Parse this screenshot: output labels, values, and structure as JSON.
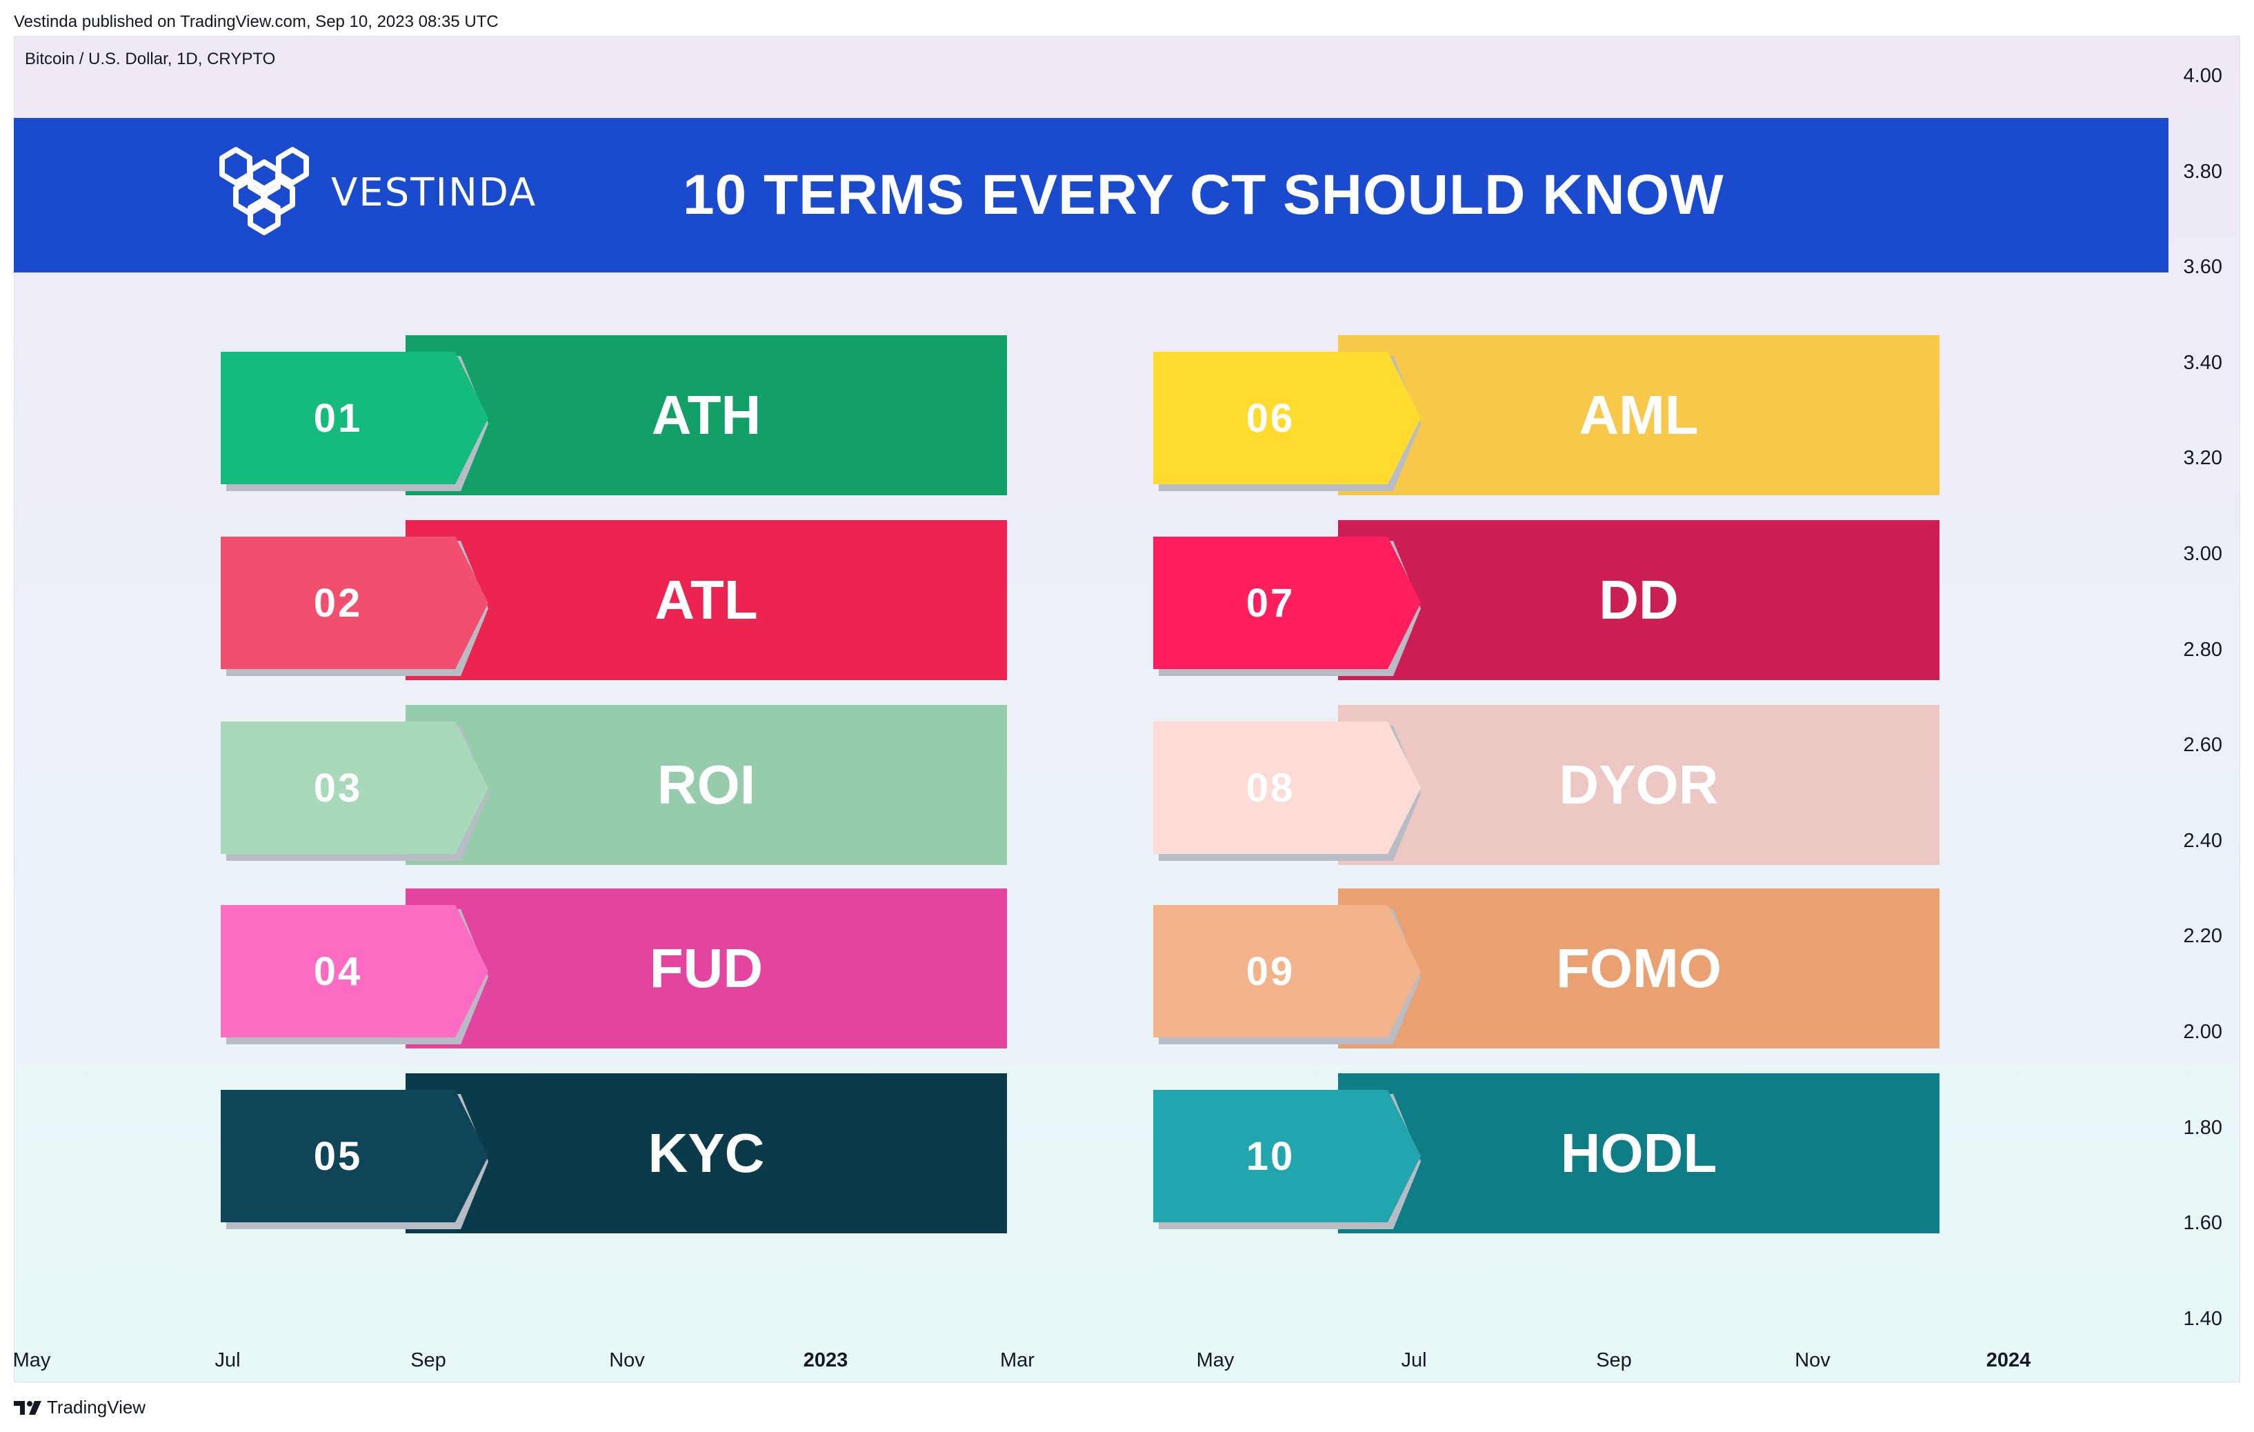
{
  "header": {
    "publish_line": "Vestinda published on TradingView.com, Sep 10, 2023 08:35 UTC"
  },
  "chart": {
    "symbol_line": "Bitcoin / U.S. Dollar, 1D, CRYPTO",
    "price_ticks": [
      "4.00",
      "3.80",
      "3.60",
      "3.40",
      "3.20",
      "3.00",
      "2.80",
      "2.60",
      "2.40",
      "2.20",
      "2.00",
      "1.80",
      "1.60",
      "1.40"
    ],
    "time_ticks": [
      {
        "label": "May",
        "bold": false
      },
      {
        "label": "Jul",
        "bold": false
      },
      {
        "label": "Sep",
        "bold": false
      },
      {
        "label": "Nov",
        "bold": false
      },
      {
        "label": "2023",
        "bold": true
      },
      {
        "label": "Mar",
        "bold": false
      },
      {
        "label": "May",
        "bold": false
      },
      {
        "label": "Jul",
        "bold": false
      },
      {
        "label": "Sep",
        "bold": false
      },
      {
        "label": "Nov",
        "bold": false
      },
      {
        "label": "2024",
        "bold": true
      }
    ]
  },
  "banner": {
    "brand_name": "VESTINDA",
    "title": "10 TERMS EVERY CT SHOULD KNOW",
    "color": "#1a4bcf"
  },
  "terms": [
    {
      "num": "01",
      "label": "ATH",
      "tab_color": "#14bb7c",
      "band_color": "#139f68",
      "logo": "arrow-tab"
    },
    {
      "num": "02",
      "label": "ATL",
      "tab_color": "#f24f6e",
      "band_color": "#ec2550"
    },
    {
      "num": "03",
      "label": "ROI",
      "tab_color": "#a8d9bb",
      "band_color": "#96cbab"
    },
    {
      "num": "04",
      "label": "FUD",
      "tab_color": "#fe6bc3",
      "band_color": "#e244a0"
    },
    {
      "num": "05",
      "label": "KYC",
      "tab_color": "#0e4558",
      "band_color": "#0b3a4b"
    },
    {
      "num": "06",
      "label": "AML",
      "tab_color": "#fedb2c",
      "band_color": "#f7c84a"
    },
    {
      "num": "07",
      "label": "DD",
      "tab_color": "#fe1e5d",
      "band_color": "#cd1e53"
    },
    {
      "num": "08",
      "label": "DYOR",
      "tab_color": "#fddcd7",
      "band_color": "#ecc7c3"
    },
    {
      "num": "09",
      "label": "FOMO",
      "tab_color": "#f2b38b",
      "band_color": "#eaa172"
    },
    {
      "num": "10",
      "label": "HODL",
      "tab_color": "#21a6ae",
      "band_color": "#0e7d85"
    }
  ],
  "footer": {
    "brand": "TradingView"
  }
}
